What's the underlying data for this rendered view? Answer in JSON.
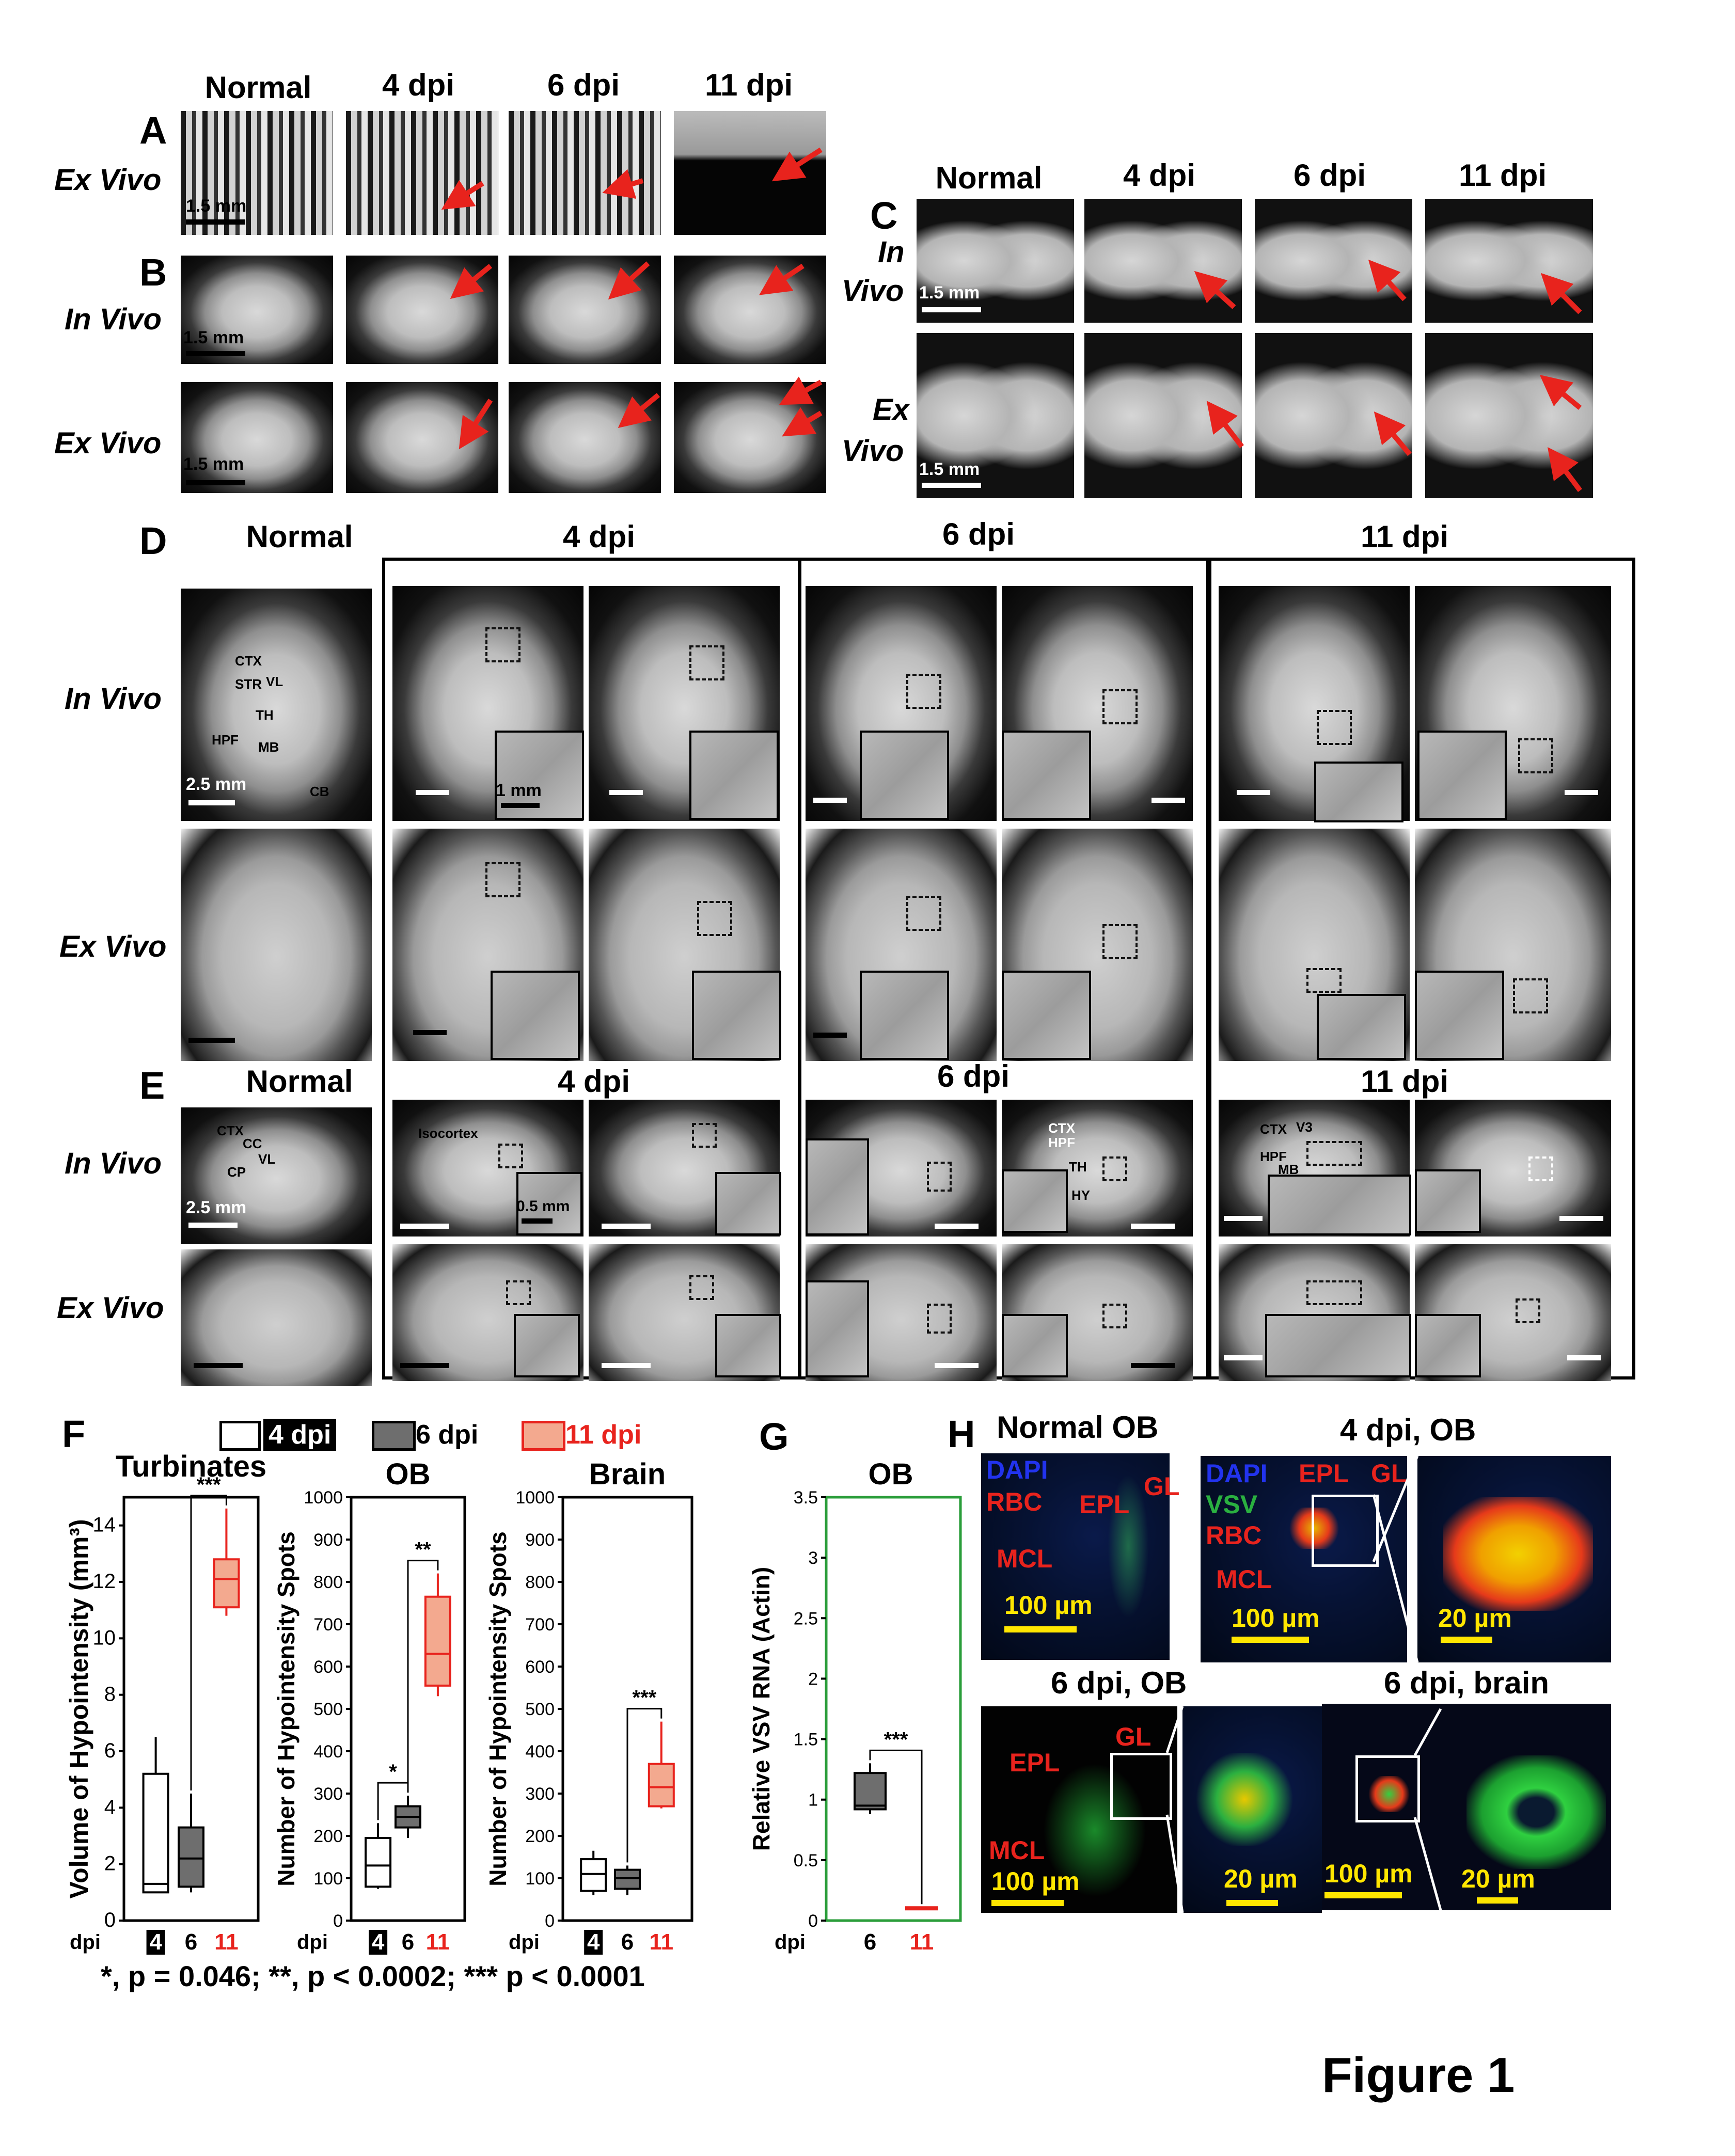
{
  "panelA": {
    "letter": "A",
    "row_label": "Ex Vivo",
    "columns": [
      "Normal",
      "4 dpi",
      "6 dpi",
      "11 dpi"
    ],
    "scale": "1.5 mm"
  },
  "panelB": {
    "letter": "B",
    "row_labels": [
      "In Vivo",
      "Ex Vivo"
    ],
    "scale": "1.5 mm",
    "scale2": "1.5 mm"
  },
  "panelC": {
    "letter": "C",
    "columns": [
      "Normal",
      "4 dpi",
      "6 dpi",
      "11 dpi"
    ],
    "row_labels": [
      "In\nVivo",
      "Ex\nVivo"
    ],
    "row1": [
      "In",
      "Vivo"
    ],
    "row2": [
      "Ex",
      "Vivo"
    ],
    "scale": "1.5 mm",
    "scale2": "1.5 mm"
  },
  "panelD": {
    "letter": "D",
    "columns": [
      "Normal",
      "4 dpi",
      "6 dpi",
      "11 dpi"
    ],
    "row_labels": [
      "In Vivo",
      "Ex Vivo"
    ],
    "regions": [
      "CTX",
      "STR",
      "VL",
      "TH",
      "HPF",
      "MB",
      "CB"
    ],
    "scale": "2.5 mm",
    "inset_scale": "1 mm"
  },
  "panelE": {
    "letter": "E",
    "columns": [
      "Normal",
      "4 dpi",
      "6 dpi",
      "11 dpi"
    ],
    "row_labels": [
      "In Vivo",
      "Ex Vivo"
    ],
    "normal_regions": [
      "CTX",
      "CC",
      "VL",
      "CP"
    ],
    "isocortex": "Isocortex",
    "six_dpi_regions": [
      "CTX",
      "HPF",
      "TH",
      "HY"
    ],
    "eleven_dpi_regions": [
      "CTX",
      "V3",
      "HPF",
      "MB"
    ],
    "scale": "2.5 mm",
    "inset_scale": "0.5 mm"
  },
  "panelF": {
    "letter": "F",
    "legend": [
      "4 dpi",
      "6 dpi",
      "11 dpi"
    ],
    "titles": [
      "Turbinates",
      "OB",
      "Brain"
    ],
    "ylabels": [
      "Volume of Hypointensity (mm³)",
      "Number of Hypointensity Spots",
      "Number of Hypointensity Spots"
    ],
    "x_axis_name": "dpi",
    "footnote": "*, p = 0.046; **, p < 0.0002; *** p < 0.0001"
  },
  "panelG": {
    "letter": "G",
    "title": "OB",
    "ylabel": "Relative VSV RNA (Actin)",
    "x_axis_name": "dpi",
    "sig": "***"
  },
  "panelH": {
    "letter": "H",
    "titles": [
      "Normal OB",
      "4 dpi, OB",
      "6 dpi, OB",
      "6 dpi, brain"
    ],
    "labels": {
      "dapi": "DAPI",
      "vsv": "VSV",
      "rbc": "RBC",
      "epl": "EPL",
      "gl": "GL",
      "mcl": "MCL"
    },
    "scale100": "100 µm",
    "scale20": "20 µm"
  },
  "figure_title": "Figure 1",
  "colors": {
    "red": "#e8231d",
    "dark_box": "#6e6e6e",
    "salmon": "#f3a98f",
    "green_frame": "#2a9d3a",
    "scale_yellow": "#ffe600"
  },
  "chart_data": [
    {
      "type": "box",
      "title": "Turbinates",
      "ylabel": "Volume of Hypointensity (mm³)",
      "categories": [
        "4",
        "6",
        "11"
      ],
      "ylim": [
        0,
        15
      ],
      "yticks": [
        0,
        2,
        4,
        6,
        8,
        10,
        12,
        14
      ],
      "boxes": [
        {
          "min": 1.0,
          "q1": 1.0,
          "median": 1.3,
          "q3": 5.2,
          "max": 6.5
        },
        {
          "min": 1.0,
          "q1": 1.2,
          "median": 2.2,
          "q3": 3.3,
          "max": 4.5
        },
        {
          "min": 10.8,
          "q1": 11.1,
          "median": 12.1,
          "q3": 12.8,
          "max": 14.6
        }
      ],
      "significance": [
        {
          "from": 1,
          "to": 2,
          "label": "***"
        }
      ]
    },
    {
      "type": "box",
      "title": "OB",
      "ylabel": "Number of Hypointensity Spots",
      "categories": [
        "4",
        "6",
        "11"
      ],
      "ylim": [
        0,
        1000
      ],
      "yticks": [
        0,
        100,
        200,
        300,
        400,
        500,
        600,
        700,
        800,
        900,
        1000
      ],
      "boxes": [
        {
          "min": 75,
          "q1": 80,
          "median": 130,
          "q3": 195,
          "max": 230
        },
        {
          "min": 195,
          "q1": 220,
          "median": 245,
          "q3": 270,
          "max": 295
        },
        {
          "min": 530,
          "q1": 555,
          "median": 630,
          "q3": 765,
          "max": 820
        }
      ],
      "significance": [
        {
          "from": 0,
          "to": 1,
          "label": "*"
        },
        {
          "from": 1,
          "to": 2,
          "label": "**"
        }
      ]
    },
    {
      "type": "box",
      "title": "Brain",
      "ylabel": "Number of Hypointensity Spots",
      "categories": [
        "4",
        "6",
        "11"
      ],
      "ylim": [
        0,
        1000
      ],
      "yticks": [
        0,
        100,
        200,
        300,
        400,
        500,
        600,
        700,
        800,
        900,
        1000
      ],
      "boxes": [
        {
          "min": 60,
          "q1": 70,
          "median": 110,
          "q3": 145,
          "max": 165
        },
        {
          "min": 60,
          "q1": 75,
          "median": 100,
          "q3": 120,
          "max": 130
        },
        {
          "min": 265,
          "q1": 270,
          "median": 315,
          "q3": 370,
          "max": 470
        }
      ],
      "significance": [
        {
          "from": 1,
          "to": 2,
          "label": "***"
        }
      ]
    },
    {
      "type": "box",
      "title": "OB",
      "ylabel": "Relative VSV RNA (Actin)",
      "categories": [
        "6",
        "11"
      ],
      "ylim": [
        0,
        3.5
      ],
      "yticks": [
        0,
        0.5,
        1,
        1.5,
        2,
        2.5,
        3,
        3.5
      ],
      "boxes": [
        {
          "min": 0.88,
          "q1": 0.92,
          "median": 0.95,
          "q3": 1.22,
          "max": 1.3
        },
        {
          "min": 0.1,
          "q1": 0.1,
          "median": 0.1,
          "q3": 0.11,
          "max": 0.11
        }
      ],
      "significance": [
        {
          "from": 0,
          "to": 1,
          "label": "***"
        }
      ]
    }
  ]
}
